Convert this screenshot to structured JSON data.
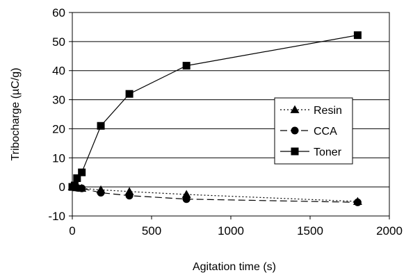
{
  "chart_data": {
    "type": "line",
    "xlabel": "Agitation time  (s)",
    "ylabel": "Tribocharge (µC/g)",
    "xlim": [
      0,
      2000
    ],
    "ylim": [
      -10,
      60
    ],
    "x_ticks": [
      0,
      500,
      1000,
      1500,
      2000
    ],
    "y_ticks": [
      -10,
      0,
      10,
      20,
      30,
      40,
      50,
      60
    ],
    "x_tick_labels": [
      "0",
      "500",
      "1000",
      "1500",
      "2000"
    ],
    "y_tick_labels": [
      "-10",
      "0",
      "10",
      "20",
      "30",
      "40",
      "50",
      "60"
    ],
    "grid": "horizontal",
    "legend_position": "right",
    "series": [
      {
        "name": "Resin",
        "marker": "triangle",
        "line_style": "dotted",
        "points": [
          [
            0,
            0.1
          ],
          [
            15,
            -0.1
          ],
          [
            30,
            -0.3
          ],
          [
            60,
            -0.5
          ],
          [
            180,
            -1.0
          ],
          [
            360,
            -1.6
          ],
          [
            720,
            -2.6
          ],
          [
            1800,
            -5.0
          ]
        ]
      },
      {
        "name": "CCA",
        "marker": "circle",
        "line_style": "dashed",
        "points": [
          [
            0,
            0
          ],
          [
            15,
            -0.1
          ],
          [
            30,
            -0.3
          ],
          [
            60,
            -0.5
          ],
          [
            180,
            -2.0
          ],
          [
            360,
            -3.0
          ],
          [
            720,
            -4.2
          ],
          [
            1800,
            -5.3
          ]
        ]
      },
      {
        "name": "Toner",
        "marker": "square",
        "line_style": "solid",
        "points": [
          [
            0,
            0
          ],
          [
            15,
            0.5
          ],
          [
            30,
            3.0
          ],
          [
            60,
            5.0
          ],
          [
            180,
            21.0
          ],
          [
            360,
            32.0
          ],
          [
            720,
            41.7
          ],
          [
            1800,
            52.2
          ]
        ]
      }
    ],
    "colors": {
      "plot_background": "#ffffff",
      "lines": "#000000",
      "grid": "#000000"
    }
  }
}
